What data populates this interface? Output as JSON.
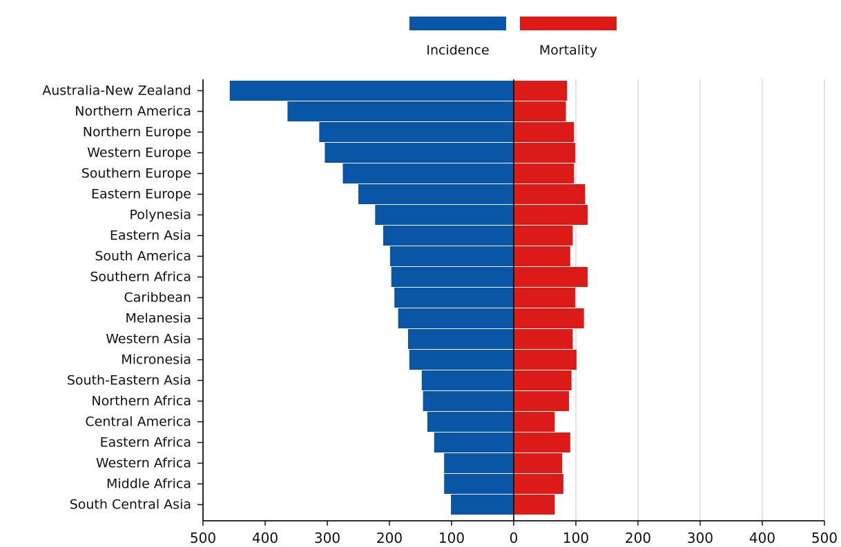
{
  "chart_data": {
    "type": "bar",
    "orientation": "horizontal-diverging",
    "categories": [
      "Australia-New Zealand",
      "Northern America",
      "Northern Europe",
      "Western Europe",
      "Southern Europe",
      "Eastern Europe",
      "Polynesia",
      "Eastern Asia",
      "South America",
      "Southern Africa",
      "Caribbean",
      "Melanesia",
      "Western Asia",
      "Micronesia",
      "South-Eastern Asia",
      "Northern Africa",
      "Central America",
      "Eastern Africa",
      "Western Africa",
      "Middle Africa",
      "South Central Asia"
    ],
    "series": [
      {
        "name": "Incidence",
        "color": "#0a56a6",
        "side": "left",
        "values": [
          457,
          364,
          313,
          304,
          275,
          250,
          223,
          210,
          199,
          197,
          192,
          186,
          170,
          168,
          148,
          146,
          139,
          128,
          112,
          112,
          101
        ]
      },
      {
        "name": "Mortality",
        "color": "#dc1a17",
        "side": "right",
        "values": [
          86,
          84,
          97,
          99,
          97,
          115,
          119,
          95,
          91,
          119,
          99,
          113,
          95,
          101,
          93,
          89,
          66,
          91,
          78,
          80,
          66
        ]
      }
    ],
    "x_ticks": [
      "500",
      "400",
      "300",
      "200",
      "100",
      "0",
      "100",
      "200",
      "300",
      "400",
      "500"
    ],
    "xlim": [
      -500,
      500
    ],
    "grid": "vertical, right side only",
    "legend_position": "top-center",
    "title": "",
    "xlabel": "",
    "ylabel": ""
  }
}
